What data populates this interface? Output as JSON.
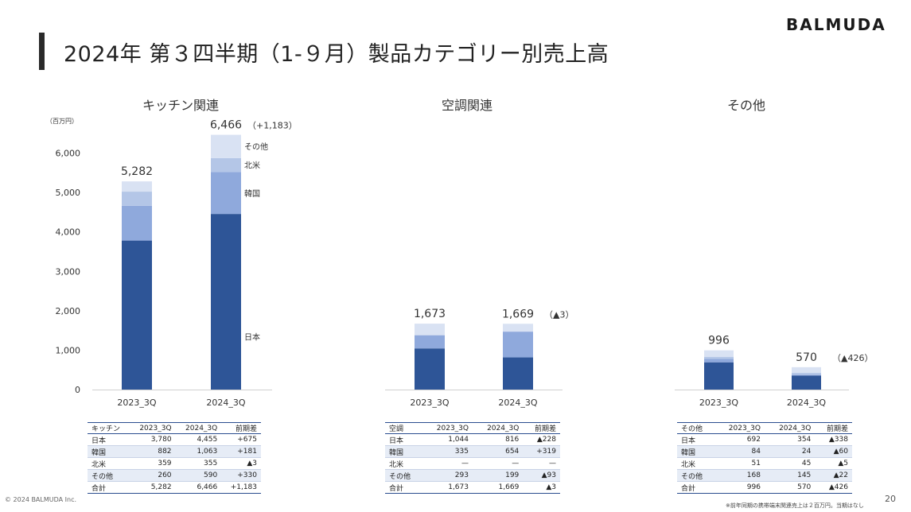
{
  "header": {
    "title": "2024年 第３四半期（1-９月）製品カテゴリー別売上高",
    "brand": "BALMUDA"
  },
  "chart_data": [
    {
      "type": "bar",
      "stacked": true,
      "title": "キッチン関連",
      "unit_label": "（百万円）",
      "categories": [
        "2023_3Q",
        "2024_3Q"
      ],
      "series": [
        {
          "name": "日本",
          "values": [
            3780,
            4455
          ]
        },
        {
          "name": "韓国",
          "values": [
            882,
            1063
          ]
        },
        {
          "name": "北米",
          "values": [
            359,
            355
          ]
        },
        {
          "name": "その他",
          "values": [
            260,
            590
          ]
        }
      ],
      "totals": [
        "5,282",
        "6,466"
      ],
      "change": "（+1,183）",
      "ylim": [
        0,
        6500
      ],
      "yticks": [
        "0",
        "1,000",
        "2,000",
        "3,000",
        "4,000",
        "5,000",
        "6,000"
      ],
      "yticks_values": [
        0,
        1000,
        2000,
        3000,
        4000,
        5000,
        6000
      ],
      "grid": false,
      "legend_placement": "right"
    },
    {
      "type": "bar",
      "stacked": true,
      "title": "空調関連",
      "categories": [
        "2023_3Q",
        "2024_3Q"
      ],
      "series": [
        {
          "name": "日本",
          "values": [
            1044,
            816
          ]
        },
        {
          "name": "韓国",
          "values": [
            335,
            654
          ]
        },
        {
          "name": "北米",
          "values": [
            0,
            0
          ]
        },
        {
          "name": "その他",
          "values": [
            293,
            199
          ]
        }
      ],
      "totals": [
        "1,673",
        "1,669"
      ],
      "change": "（▲3）",
      "ylim": [
        0,
        6500
      ],
      "grid": false
    },
    {
      "type": "bar",
      "stacked": true,
      "title": "その他",
      "categories": [
        "2023_3Q",
        "2024_3Q"
      ],
      "series": [
        {
          "name": "日本",
          "values": [
            692,
            354
          ]
        },
        {
          "name": "韓国",
          "values": [
            84,
            24
          ]
        },
        {
          "name": "北米",
          "values": [
            51,
            45
          ]
        },
        {
          "name": "その他",
          "values": [
            168,
            145
          ]
        }
      ],
      "totals": [
        "996",
        "570"
      ],
      "change": "（▲426）",
      "ylim": [
        0,
        6500
      ],
      "grid": false
    }
  ],
  "series_colors": [
    "#2e5597",
    "#8fa9dc",
    "#b4c6e7",
    "#d9e2f3"
  ],
  "tables": [
    {
      "header": [
        "キッチン",
        "2023_3Q",
        "2024_3Q",
        "前期差"
      ],
      "rows": [
        [
          "日本",
          "3,780",
          "4,455",
          "+675"
        ],
        [
          "韓国",
          "882",
          "1,063",
          "+181"
        ],
        [
          "北米",
          "359",
          "355",
          "▲3"
        ],
        [
          "その他",
          "260",
          "590",
          "+330"
        ],
        [
          "合計",
          "5,282",
          "6,466",
          "+1,183"
        ]
      ]
    },
    {
      "header": [
        "空調",
        "2023_3Q",
        "2024_3Q",
        "前期差"
      ],
      "rows": [
        [
          "日本",
          "1,044",
          "816",
          "▲228"
        ],
        [
          "韓国",
          "335",
          "654",
          "+319"
        ],
        [
          "北米",
          "—",
          "—",
          "—"
        ],
        [
          "その他",
          "293",
          "199",
          "▲93"
        ],
        [
          "合計",
          "1,673",
          "1,669",
          "▲3"
        ]
      ]
    },
    {
      "header": [
        "その他",
        "2023_3Q",
        "2024_3Q",
        "前期差"
      ],
      "rows": [
        [
          "日本",
          "692",
          "354",
          "▲338"
        ],
        [
          "韓国",
          "84",
          "24",
          "▲60"
        ],
        [
          "北米",
          "51",
          "45",
          "▲5"
        ],
        [
          "その他",
          "168",
          "145",
          "▲22"
        ],
        [
          "合計",
          "996",
          "570",
          "▲426"
        ]
      ]
    }
  ],
  "footer": {
    "copyright": "© 2024 BALMUDA Inc.",
    "page": "20",
    "footnote": "※前年同期の携帯端末関連売上は２百万円。当期はなし"
  }
}
